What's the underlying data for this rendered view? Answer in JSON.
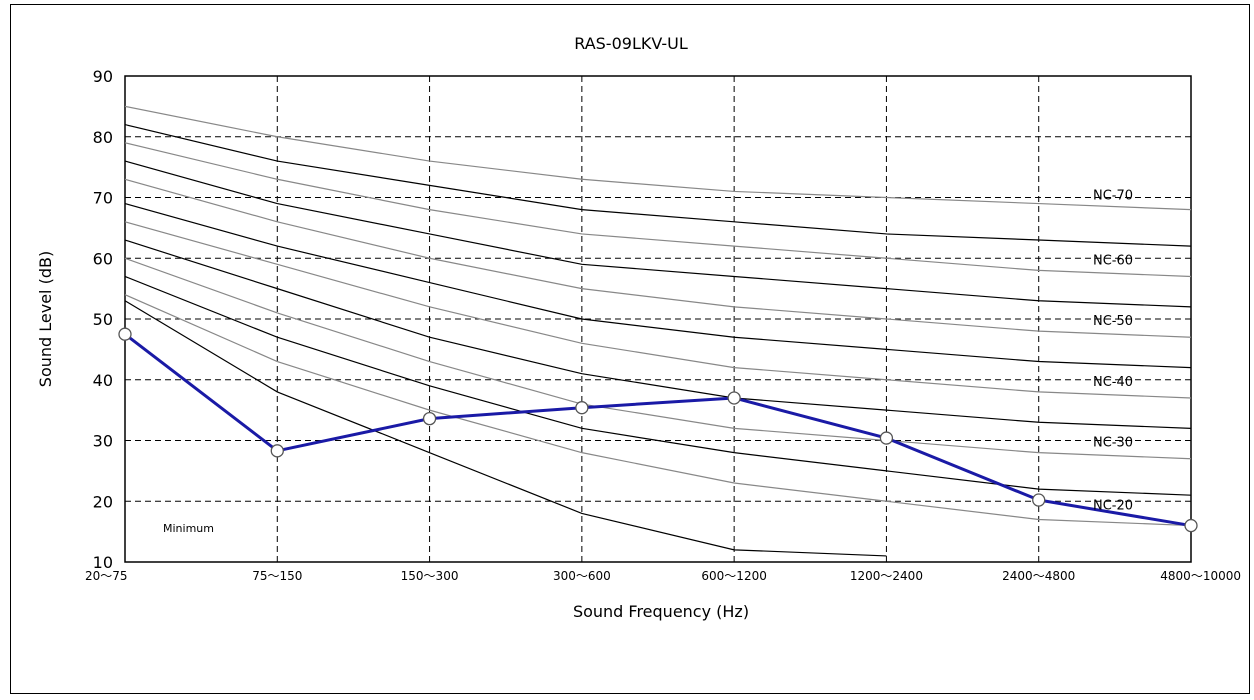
{
  "chart_data": {
    "type": "line",
    "title": "RAS-09LKV-UL",
    "xlabel": "Sound Frequency (Hz)",
    "ylabel": "Sound Level (dB)",
    "categories": [
      "20～75",
      "75～150",
      "150～300",
      "300～600",
      "600～1200",
      "1200～2400",
      "2400～4800",
      "4800～10000"
    ],
    "ylim": [
      10,
      90
    ],
    "yticks": [
      10,
      20,
      30,
      40,
      50,
      60,
      70,
      80,
      90
    ],
    "grid": true,
    "annotation": "Minimum",
    "series": [
      {
        "values": [
          47.5,
          28.3,
          33.6,
          35.4,
          37.0,
          30.4,
          20.2,
          16.0
        ],
        "color": "#1a1aa6"
      }
    ],
    "nc_curves": [
      {
        "values": [
          85,
          80,
          76,
          73,
          71,
          70,
          69,
          68
        ],
        "color": "#888888"
      },
      {
        "values": [
          82,
          76,
          72,
          68,
          66,
          64,
          63,
          62
        ],
        "color": "#000000"
      },
      {
        "values": [
          79,
          73,
          68,
          64,
          62,
          60,
          58,
          57
        ],
        "color": "#888888"
      },
      {
        "values": [
          76,
          69,
          64,
          59,
          57,
          55,
          53,
          52
        ],
        "color": "#000000"
      },
      {
        "values": [
          73,
          66,
          60,
          55,
          52,
          50,
          48,
          47
        ],
        "color": "#888888"
      },
      {
        "values": [
          69,
          62,
          56,
          50,
          47,
          45,
          43,
          42
        ],
        "color": "#000000"
      },
      {
        "values": [
          66,
          59,
          52,
          46,
          42,
          40,
          38,
          37
        ],
        "color": "#888888"
      },
      {
        "values": [
          63,
          55,
          47,
          41,
          37,
          35,
          33,
          32
        ],
        "color": "#000000"
      },
      {
        "values": [
          60,
          51,
          43,
          36,
          32,
          30,
          28,
          27
        ],
        "color": "#888888"
      },
      {
        "values": [
          57,
          47,
          39,
          32,
          28,
          25,
          22,
          21
        ],
        "color": "#000000"
      },
      {
        "values": [
          54,
          43,
          35,
          28,
          23,
          20,
          17,
          16
        ],
        "color": "#888888"
      }
    ],
    "minimum_curve": {
      "values": [
        53,
        38,
        28,
        18,
        12,
        11
      ],
      "color": "#000000"
    },
    "nc_labels": [
      {
        "text": "NC-70",
        "value": 70.5
      },
      {
        "text": "NC-60",
        "value": 59.8
      },
      {
        "text": "NC-50",
        "value": 49.8
      },
      {
        "text": "NC-40",
        "value": 39.8
      },
      {
        "text": "NC-30",
        "value": 29.8
      },
      {
        "text": "NC-20",
        "value": 19.5
      }
    ]
  }
}
